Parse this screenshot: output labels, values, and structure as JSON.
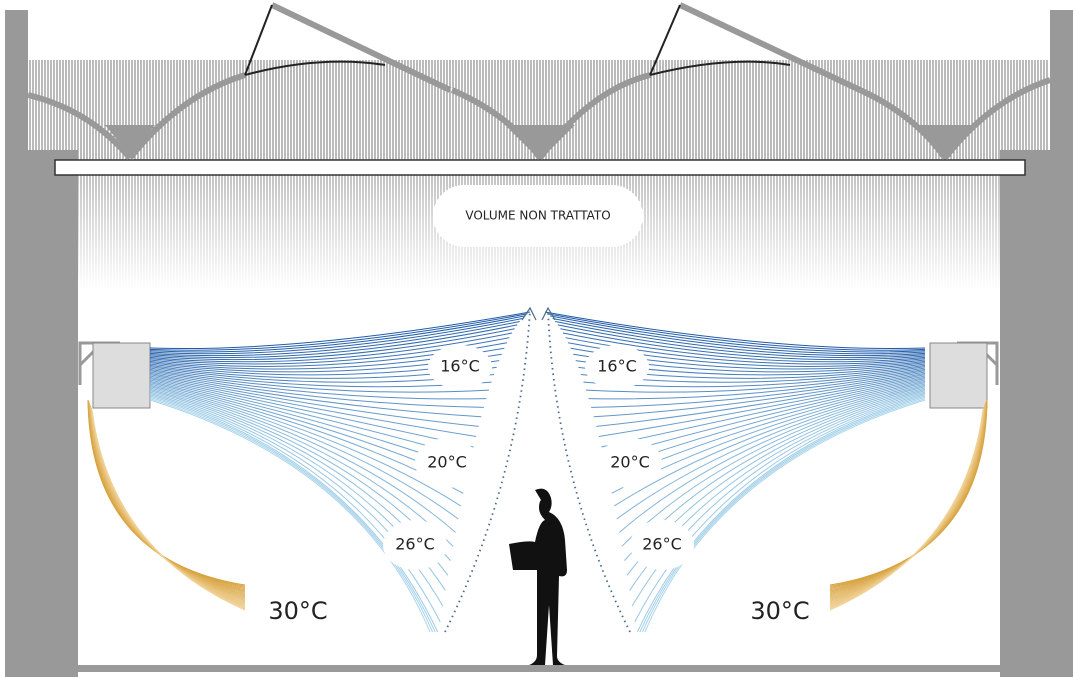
{
  "untreated_label": "VOLUME NON TRATTATO",
  "left_zone": {
    "top": "16°C",
    "middle": "20°C",
    "bottom": "26°C",
    "floor": "30°C"
  },
  "right_zone": {
    "top": "16°C",
    "middle": "20°C",
    "bottom": "26°C",
    "floor": "30°C"
  }
}
